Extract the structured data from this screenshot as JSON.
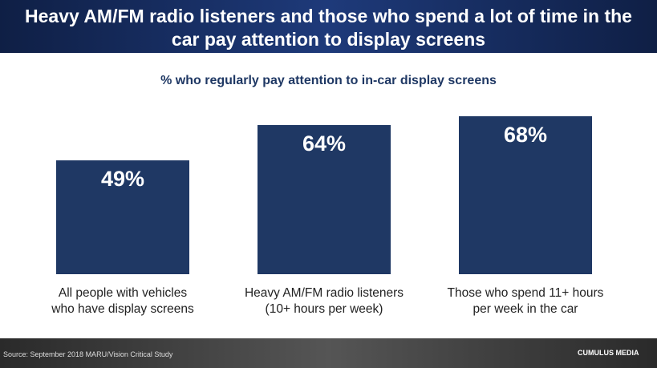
{
  "chart_data": {
    "type": "bar",
    "title": "Heavy AM/FM radio listeners and those who spend a lot of time in the car pay attention to display screens",
    "subtitle": "% who regularly pay attention to in-car display screens",
    "categories": [
      "All people with vehicles\nwho have display screens",
      "Heavy AM/FM radio listeners\n(10+ hours per week)",
      "Those who spend 11+ hours\nper week in the car"
    ],
    "values": [
      49,
      64,
      68
    ],
    "value_labels": [
      "49%",
      "64%",
      "68%"
    ],
    "color": "#1f3864",
    "ylim": [
      0,
      100
    ],
    "grid": false,
    "source": "Source: September 2018 MARU/Vision Critical Study",
    "logo": "CUMULUS MEDIA"
  }
}
